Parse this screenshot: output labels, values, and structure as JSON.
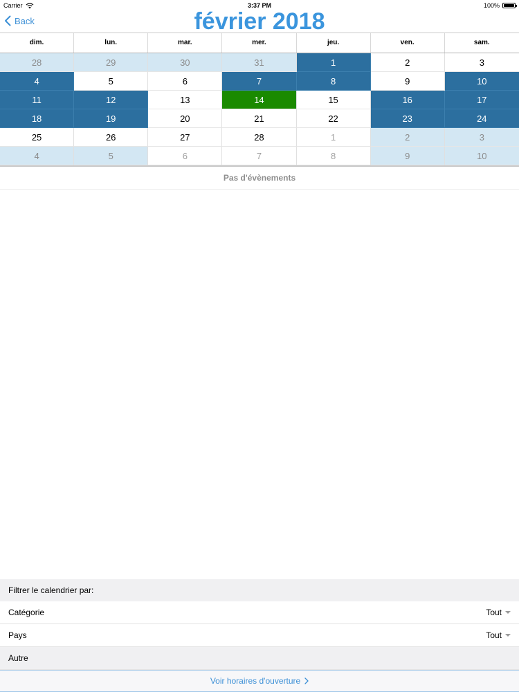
{
  "status_bar": {
    "carrier": "Carrier",
    "time": "3:37 PM",
    "battery": "100%"
  },
  "nav": {
    "back_label": "Back",
    "title": "février 2018"
  },
  "calendar": {
    "weekdays": [
      "dim.",
      "lun.",
      "mar.",
      "mer.",
      "jeu.",
      "ven.",
      "sam."
    ],
    "weeks": [
      [
        {
          "d": "28",
          "s": "light"
        },
        {
          "d": "29",
          "s": "light"
        },
        {
          "d": "30",
          "s": "light"
        },
        {
          "d": "31",
          "s": "light"
        },
        {
          "d": "1",
          "s": "dark"
        },
        {
          "d": "2",
          "s": "cur"
        },
        {
          "d": "3",
          "s": "cur"
        }
      ],
      [
        {
          "d": "4",
          "s": "dark"
        },
        {
          "d": "5",
          "s": "cur"
        },
        {
          "d": "6",
          "s": "cur"
        },
        {
          "d": "7",
          "s": "dark"
        },
        {
          "d": "8",
          "s": "dark"
        },
        {
          "d": "9",
          "s": "cur"
        },
        {
          "d": "10",
          "s": "dark"
        }
      ],
      [
        {
          "d": "11",
          "s": "dark"
        },
        {
          "d": "12",
          "s": "dark"
        },
        {
          "d": "13",
          "s": "cur"
        },
        {
          "d": "14",
          "s": "today"
        },
        {
          "d": "15",
          "s": "cur"
        },
        {
          "d": "16",
          "s": "dark"
        },
        {
          "d": "17",
          "s": "dark"
        }
      ],
      [
        {
          "d": "18",
          "s": "dark"
        },
        {
          "d": "19",
          "s": "dark"
        },
        {
          "d": "20",
          "s": "cur"
        },
        {
          "d": "21",
          "s": "cur"
        },
        {
          "d": "22",
          "s": "cur"
        },
        {
          "d": "23",
          "s": "dark"
        },
        {
          "d": "24",
          "s": "dark"
        }
      ],
      [
        {
          "d": "25",
          "s": "cur"
        },
        {
          "d": "26",
          "s": "cur"
        },
        {
          "d": "27",
          "s": "cur"
        },
        {
          "d": "28",
          "s": "cur"
        },
        {
          "d": "1",
          "s": "other"
        },
        {
          "d": "2",
          "s": "light"
        },
        {
          "d": "3",
          "s": "light"
        }
      ],
      [
        {
          "d": "4",
          "s": "light"
        },
        {
          "d": "5",
          "s": "light"
        },
        {
          "d": "6",
          "s": "other"
        },
        {
          "d": "7",
          "s": "other"
        },
        {
          "d": "8",
          "s": "other"
        },
        {
          "d": "9",
          "s": "light"
        },
        {
          "d": "10",
          "s": "light"
        }
      ]
    ]
  },
  "events": {
    "empty_text": "Pas d'évènements"
  },
  "filter": {
    "title": "Filtrer le calendrier par:",
    "category_label": "Catégorie",
    "category_value": "Tout",
    "country_label": "Pays",
    "country_value": "Tout",
    "other_label": "Autre"
  },
  "footer": {
    "open_hours_label": "Voir horaires d'ouverture"
  },
  "colors": {
    "accent": "#3b8fd6",
    "title": "#3b95dd",
    "selected_day": "#2c6f9f",
    "highlight_day": "#d3e7f3",
    "today": "#1a8a00"
  }
}
